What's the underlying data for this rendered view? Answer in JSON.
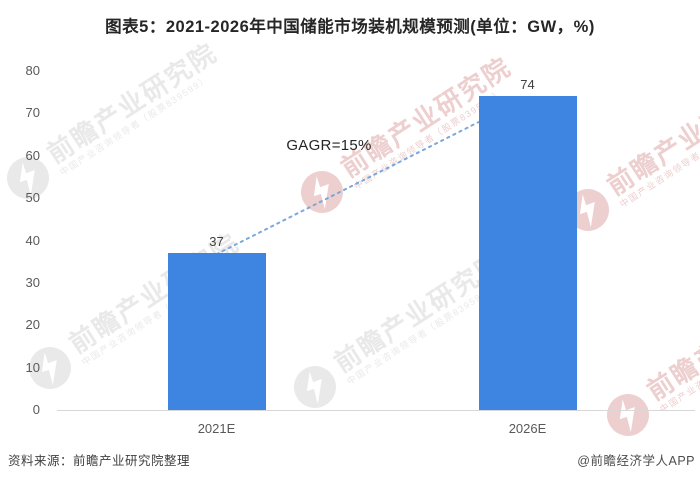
{
  "title": "图表5：2021-2026年中国储能市场装机规模预测(单位：GW，%)",
  "chart_data": {
    "type": "bar",
    "categories": [
      "2021E",
      "2026E"
    ],
    "values": [
      37,
      74
    ],
    "bar_labels": [
      "37",
      "74"
    ],
    "ylim": [
      0,
      80
    ],
    "ytick_interval": 10,
    "ytick_labels": [
      "0",
      "10",
      "20",
      "30",
      "40",
      "50",
      "60",
      "70",
      "80"
    ],
    "grid": false,
    "legend": "none",
    "bar_color": "#3D85E0",
    "axis_line_color": "#d8d8d8",
    "tick_label_color": "#595959",
    "trendline": {
      "style": "dotted",
      "color": "#7AA7DC",
      "from_category": "2021E",
      "to_category": "2026E",
      "label": "GAGR=15%"
    }
  },
  "footer": {
    "source": "资料来源：前瞻产业研究院整理",
    "credit": "@前瞻经济学人APP"
  },
  "watermark": {
    "big_text": "前瞻产业研究院",
    "small_text": "中国产业咨询领导者（股票839599）",
    "gray_color": "#e9e9e9",
    "pink_color": "#edcfcf"
  }
}
